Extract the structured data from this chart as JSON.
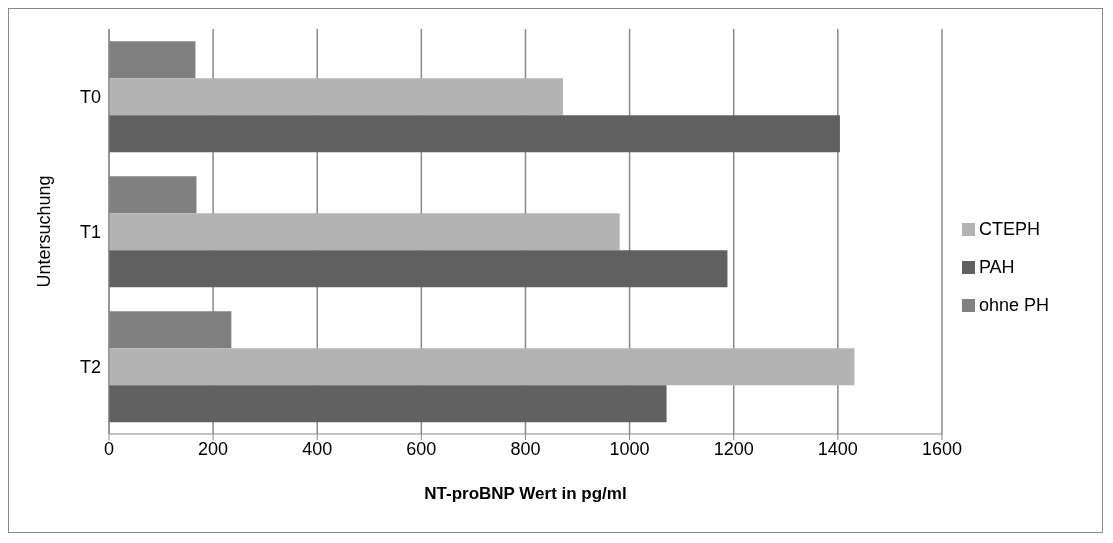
{
  "chart_data": {
    "type": "bar",
    "orientation": "horizontal",
    "xlabel": "NT-proBNP Wert in pg/ml",
    "ylabel": "Untersuchung",
    "categories": [
      "T0",
      "T1",
      "T2"
    ],
    "series": [
      {
        "name": "ohne PH",
        "color": "#808080",
        "values": [
          166,
          168,
          235
        ]
      },
      {
        "name": "CTEPH",
        "color": "#b3b3b3",
        "values": [
          872,
          981,
          1432
        ]
      },
      {
        "name": "PAH",
        "color": "#606060",
        "values": [
          1404,
          1188,
          1071
        ]
      }
    ],
    "xlim": [
      0,
      1600
    ],
    "xticks": [
      0,
      200,
      400,
      600,
      800,
      1000,
      1200,
      1400,
      1600
    ],
    "grid": "x",
    "legend": "right"
  }
}
